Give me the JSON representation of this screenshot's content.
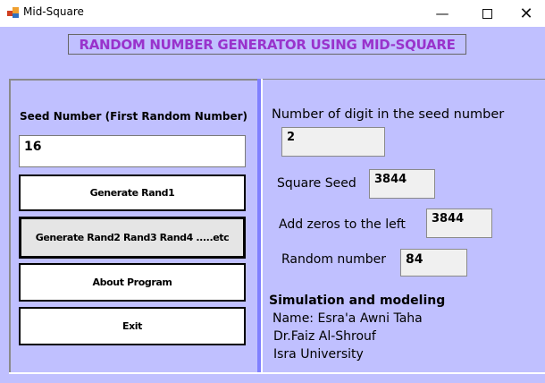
{
  "window": {
    "title": "Mid-Square",
    "minimize_icon": "minimize-icon",
    "maximize_icon": "maximize-icon",
    "close_icon": "close-icon"
  },
  "header": {
    "title": "RANDOM NUMBER GENERATOR USING MID-SQUARE",
    "color": "#9933cc"
  },
  "left": {
    "seed_label": "Seed Number (First Random Number)",
    "seed_value": "16",
    "buttons": [
      "Generate Rand1",
      "Generate Rand2  Rand3  Rand4 .....etc",
      "About Program",
      "Exit"
    ]
  },
  "right": {
    "digits_label": "Number of digit in the seed number",
    "digits_value": "2",
    "square_label": "Square Seed",
    "square_value": "3844",
    "zeros_label": "Add zeros to the left",
    "zeros_value": "3844",
    "random_label": "Random number",
    "random_value": "84",
    "course": "Simulation and modeling",
    "name": "Name: Esra'a Awni Taha",
    "doctor": "Dr.Faiz Al-Shrouf",
    "university": "Isra University"
  },
  "colors": {
    "background": "#c0c0ff",
    "splitter": "#8080ff"
  }
}
